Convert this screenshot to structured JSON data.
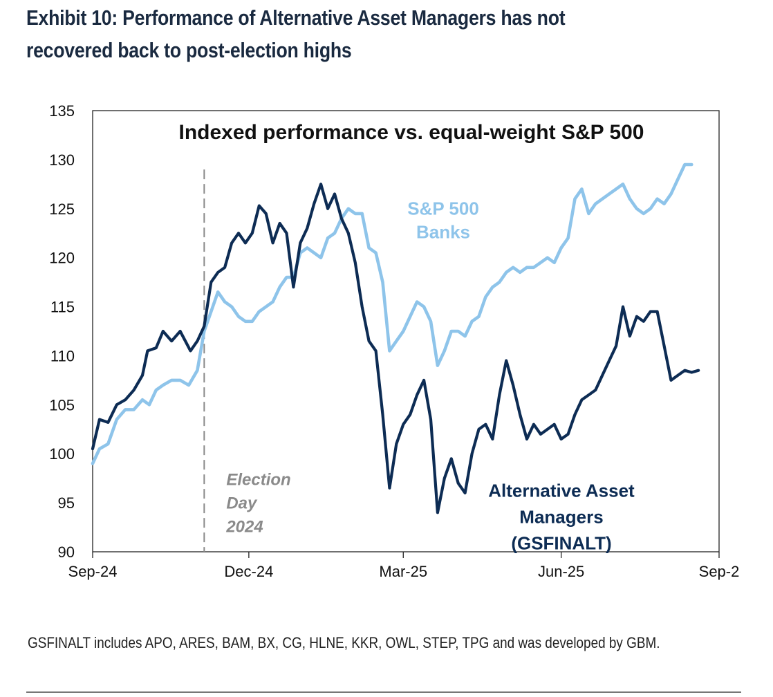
{
  "exhibit_title": "Exhibit 10: Performance of Alternative Asset Managers has not recovered back to post-election highs",
  "footnote": "GSFINALT includes APO, ARES, BAM, BX, CG, HLNE, KKR, OWL, STEP, TPG and was developed by GBM.",
  "colors": {
    "alt_series": "#0d2c54",
    "banks_series": "#8ec4ea",
    "vline": "#888888",
    "annotation": "#8a8a8a"
  },
  "chart_data": {
    "type": "line",
    "title": "Indexed performance vs. equal-weight S&P 500",
    "xlabel": "",
    "ylabel": "",
    "xlim": [
      "2024-09-01",
      "2025-09-01"
    ],
    "ylim": [
      90,
      135
    ],
    "yticks": [
      90,
      95,
      100,
      105,
      110,
      115,
      120,
      125,
      130,
      135
    ],
    "xticks": [
      {
        "date": "2024-09-01",
        "label": "Sep-24"
      },
      {
        "date": "2024-12-01",
        "label": "Dec-24"
      },
      {
        "date": "2025-03-01",
        "label": "Mar-25"
      },
      {
        "date": "2025-06-01",
        "label": "Jun-25"
      },
      {
        "date": "2025-09-01",
        "label": "Sep-2"
      }
    ],
    "grid": false,
    "event_line": {
      "date": "2024-11-05",
      "label_lines": [
        "Election",
        "Day",
        "2024"
      ]
    },
    "series": [
      {
        "name": "Alternative Asset Managers (GSFINALT)",
        "label_lines": [
          "Alternative Asset",
          "Managers",
          "(GSFINALT)"
        ],
        "color": "#0d2c54",
        "points": [
          [
            "2024-09-01",
            100.5
          ],
          [
            "2024-09-05",
            103.5
          ],
          [
            "2024-09-10",
            103.2
          ],
          [
            "2024-09-15",
            105
          ],
          [
            "2024-09-20",
            105.5
          ],
          [
            "2024-09-25",
            106.5
          ],
          [
            "2024-09-30",
            108
          ],
          [
            "2024-10-03",
            110.5
          ],
          [
            "2024-10-08",
            110.8
          ],
          [
            "2024-10-12",
            112.5
          ],
          [
            "2024-10-17",
            111.5
          ],
          [
            "2024-10-22",
            112.5
          ],
          [
            "2024-10-28",
            110.5
          ],
          [
            "2024-11-01",
            111.5
          ],
          [
            "2024-11-05",
            113
          ],
          [
            "2024-11-09",
            117.5
          ],
          [
            "2024-11-13",
            118.5
          ],
          [
            "2024-11-17",
            119
          ],
          [
            "2024-11-21",
            121.5
          ],
          [
            "2024-11-25",
            122.5
          ],
          [
            "2024-11-29",
            121.5
          ],
          [
            "2024-12-03",
            122.5
          ],
          [
            "2024-12-07",
            125.3
          ],
          [
            "2024-12-11",
            124.5
          ],
          [
            "2024-12-15",
            121.5
          ],
          [
            "2024-12-19",
            123.5
          ],
          [
            "2024-12-23",
            122.5
          ],
          [
            "2024-12-27",
            117
          ],
          [
            "2024-12-31",
            121.5
          ],
          [
            "2025-01-04",
            123
          ],
          [
            "2025-01-08",
            125.5
          ],
          [
            "2025-01-12",
            127.5
          ],
          [
            "2025-01-16",
            125
          ],
          [
            "2025-01-20",
            126.5
          ],
          [
            "2025-01-24",
            124
          ],
          [
            "2025-01-28",
            122.5
          ],
          [
            "2025-02-01",
            119.5
          ],
          [
            "2025-02-05",
            115
          ],
          [
            "2025-02-09",
            111.5
          ],
          [
            "2025-02-13",
            110.5
          ],
          [
            "2025-02-17",
            104
          ],
          [
            "2025-02-21",
            96.5
          ],
          [
            "2025-02-25",
            101
          ],
          [
            "2025-03-01",
            103
          ],
          [
            "2025-03-05",
            104
          ],
          [
            "2025-03-09",
            106
          ],
          [
            "2025-03-13",
            107.5
          ],
          [
            "2025-03-17",
            103.5
          ],
          [
            "2025-03-21",
            94
          ],
          [
            "2025-03-25",
            97.5
          ],
          [
            "2025-03-29",
            99.5
          ],
          [
            "2025-04-02",
            97
          ],
          [
            "2025-04-06",
            96
          ],
          [
            "2025-04-10",
            100
          ],
          [
            "2025-04-14",
            102.5
          ],
          [
            "2025-04-18",
            103
          ],
          [
            "2025-04-22",
            101.5
          ],
          [
            "2025-04-26",
            106
          ],
          [
            "2025-04-30",
            109.5
          ],
          [
            "2025-05-04",
            107
          ],
          [
            "2025-05-08",
            104
          ],
          [
            "2025-05-12",
            101.5
          ],
          [
            "2025-05-16",
            103
          ],
          [
            "2025-05-20",
            102
          ],
          [
            "2025-05-24",
            102.5
          ],
          [
            "2025-05-28",
            103
          ],
          [
            "2025-06-01",
            101.5
          ],
          [
            "2025-06-05",
            102
          ],
          [
            "2025-06-09",
            104
          ],
          [
            "2025-06-13",
            105.5
          ],
          [
            "2025-06-17",
            106
          ],
          [
            "2025-06-21",
            106.5
          ],
          [
            "2025-06-25",
            108
          ],
          [
            "2025-06-29",
            109.5
          ],
          [
            "2025-07-03",
            111
          ],
          [
            "2025-07-07",
            115
          ],
          [
            "2025-07-11",
            112
          ],
          [
            "2025-07-15",
            114
          ],
          [
            "2025-07-19",
            113.5
          ],
          [
            "2025-07-23",
            114.5
          ],
          [
            "2025-07-27",
            114.5
          ],
          [
            "2025-07-31",
            111
          ],
          [
            "2025-08-04",
            107.5
          ],
          [
            "2025-08-08",
            108
          ],
          [
            "2025-08-12",
            108.5
          ],
          [
            "2025-08-16",
            108.3
          ],
          [
            "2025-08-20",
            108.5
          ]
        ]
      },
      {
        "name": "S&P 500 Banks",
        "label_lines": [
          "S&P 500",
          "Banks"
        ],
        "color": "#8ec4ea",
        "points": [
          [
            "2024-09-01",
            99
          ],
          [
            "2024-09-05",
            100.5
          ],
          [
            "2024-09-10",
            101
          ],
          [
            "2024-09-15",
            103.5
          ],
          [
            "2024-09-20",
            104.5
          ],
          [
            "2024-09-25",
            104.5
          ],
          [
            "2024-09-30",
            105.5
          ],
          [
            "2024-10-04",
            105
          ],
          [
            "2024-10-08",
            106.5
          ],
          [
            "2024-10-12",
            107
          ],
          [
            "2024-10-17",
            107.5
          ],
          [
            "2024-10-22",
            107.5
          ],
          [
            "2024-10-27",
            107
          ],
          [
            "2024-11-01",
            108.5
          ],
          [
            "2024-11-05",
            112.5
          ],
          [
            "2024-11-09",
            114.5
          ],
          [
            "2024-11-13",
            116.5
          ],
          [
            "2024-11-17",
            115.5
          ],
          [
            "2024-11-21",
            115
          ],
          [
            "2024-11-25",
            114
          ],
          [
            "2024-11-29",
            113.5
          ],
          [
            "2024-12-03",
            113.5
          ],
          [
            "2024-12-07",
            114.5
          ],
          [
            "2024-12-11",
            115
          ],
          [
            "2024-12-15",
            115.5
          ],
          [
            "2024-12-19",
            117
          ],
          [
            "2024-12-23",
            118
          ],
          [
            "2024-12-27",
            118
          ],
          [
            "2024-12-31",
            120.5
          ],
          [
            "2025-01-04",
            121
          ],
          [
            "2025-01-08",
            120.5
          ],
          [
            "2025-01-12",
            120
          ],
          [
            "2025-01-16",
            122
          ],
          [
            "2025-01-20",
            122.5
          ],
          [
            "2025-01-24",
            124
          ],
          [
            "2025-01-28",
            125
          ],
          [
            "2025-02-01",
            124.5
          ],
          [
            "2025-02-05",
            124.5
          ],
          [
            "2025-02-09",
            121
          ],
          [
            "2025-02-13",
            120.5
          ],
          [
            "2025-02-17",
            117.5
          ],
          [
            "2025-02-21",
            110.5
          ],
          [
            "2025-02-25",
            111.5
          ],
          [
            "2025-03-01",
            112.5
          ],
          [
            "2025-03-05",
            114
          ],
          [
            "2025-03-09",
            115.5
          ],
          [
            "2025-03-13",
            115
          ],
          [
            "2025-03-17",
            113.5
          ],
          [
            "2025-03-21",
            109
          ],
          [
            "2025-03-25",
            110.5
          ],
          [
            "2025-03-29",
            112.5
          ],
          [
            "2025-04-02",
            112.5
          ],
          [
            "2025-04-06",
            112
          ],
          [
            "2025-04-10",
            113.5
          ],
          [
            "2025-04-14",
            114
          ],
          [
            "2025-04-18",
            116
          ],
          [
            "2025-04-22",
            117
          ],
          [
            "2025-04-26",
            117.5
          ],
          [
            "2025-04-30",
            118.5
          ],
          [
            "2025-05-04",
            119
          ],
          [
            "2025-05-08",
            118.5
          ],
          [
            "2025-05-12",
            119
          ],
          [
            "2025-05-16",
            119
          ],
          [
            "2025-05-20",
            119.5
          ],
          [
            "2025-05-24",
            120
          ],
          [
            "2025-05-28",
            119.5
          ],
          [
            "2025-06-01",
            121
          ],
          [
            "2025-06-05",
            122
          ],
          [
            "2025-06-09",
            126
          ],
          [
            "2025-06-13",
            127
          ],
          [
            "2025-06-17",
            124.5
          ],
          [
            "2025-06-21",
            125.5
          ],
          [
            "2025-06-25",
            126
          ],
          [
            "2025-06-29",
            126.5
          ],
          [
            "2025-07-03",
            127
          ],
          [
            "2025-07-07",
            127.5
          ],
          [
            "2025-07-11",
            126
          ],
          [
            "2025-07-15",
            125
          ],
          [
            "2025-07-19",
            124.5
          ],
          [
            "2025-07-23",
            125
          ],
          [
            "2025-07-27",
            126
          ],
          [
            "2025-07-31",
            125.5
          ],
          [
            "2025-08-04",
            126.5
          ],
          [
            "2025-08-08",
            128
          ],
          [
            "2025-08-12",
            129.5
          ],
          [
            "2025-08-16",
            129.5
          ]
        ]
      }
    ]
  }
}
